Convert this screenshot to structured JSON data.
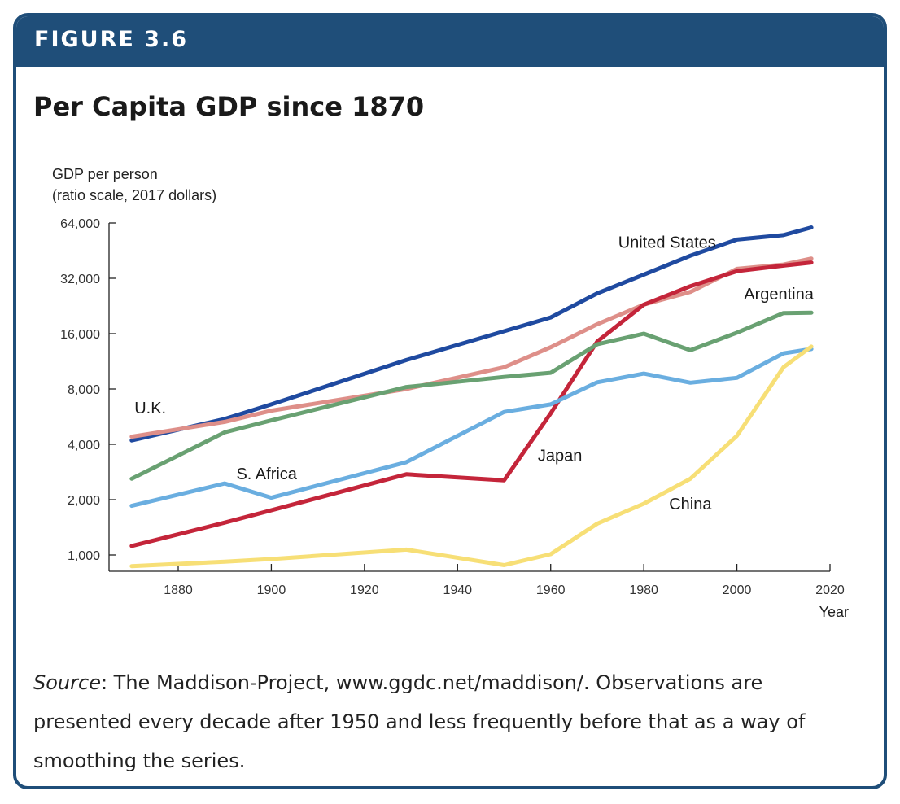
{
  "figure": {
    "label": "FIGURE 3.6",
    "title": "Per Capita GDP since 1870",
    "source_label": "Source",
    "source_text": ": The Maddison-Project, www.ggdc.net/maddison/. Observations are presented every decade after 1950 and less frequently before that as a way of smoothing the series."
  },
  "colors": {
    "banner": "#1f4e79",
    "axis": "#222222"
  },
  "chart_data": {
    "type": "line",
    "ylabel_line1": "GDP per person",
    "ylabel_line2": "(ratio scale, 2017 dollars)",
    "xlabel": "Year",
    "y_scale": "log2",
    "ylim": [
      850,
      64000
    ],
    "xlim": [
      1865,
      2020
    ],
    "yticks": [
      1000,
      2000,
      4000,
      8000,
      16000,
      32000,
      64000
    ],
    "ytick_labels": [
      "1,000",
      "2,000",
      "4,000",
      "8,000",
      "16,000",
      "32,000",
      "64,000"
    ],
    "xticks": [
      1880,
      1900,
      1920,
      1940,
      1960,
      1980,
      2000,
      2020
    ],
    "xtick_labels": [
      "1880",
      "1900",
      "1920",
      "1940",
      "1960",
      "1980",
      "2000",
      "2020"
    ],
    "series": [
      {
        "name": "United States",
        "color": "#1f4aa0",
        "label": {
          "text": "United States",
          "x": 1985,
          "y": 47000
        },
        "points": [
          [
            1870,
            4200
          ],
          [
            1890,
            5500
          ],
          [
            1900,
            6600
          ],
          [
            1929,
            11500
          ],
          [
            1950,
            16500
          ],
          [
            1960,
            19600
          ],
          [
            1970,
            26500
          ],
          [
            1980,
            33500
          ],
          [
            1990,
            42500
          ],
          [
            2000,
            52000
          ],
          [
            2010,
            55000
          ],
          [
            2016,
            60500
          ]
        ]
      },
      {
        "name": "U.K.",
        "color": "#de8f89",
        "label": {
          "text": "U.K.",
          "x": 1874,
          "y": 5900
        },
        "points": [
          [
            1870,
            4400
          ],
          [
            1890,
            5300
          ],
          [
            1900,
            6100
          ],
          [
            1929,
            8000
          ],
          [
            1950,
            10500
          ],
          [
            1960,
            13500
          ],
          [
            1970,
            18000
          ],
          [
            1980,
            23000
          ],
          [
            1990,
            27000
          ],
          [
            2000,
            36000
          ],
          [
            2010,
            38000
          ],
          [
            2016,
            41000
          ]
        ]
      },
      {
        "name": "Japan",
        "color": "#c4253a",
        "label": {
          "text": "Japan",
          "x": 1962,
          "y": 3250
        },
        "points": [
          [
            1870,
            1120
          ],
          [
            1890,
            1500
          ],
          [
            1900,
            1750
          ],
          [
            1929,
            2750
          ],
          [
            1950,
            2550
          ],
          [
            1960,
            5900
          ],
          [
            1970,
            14500
          ],
          [
            1980,
            23000
          ],
          [
            1990,
            29000
          ],
          [
            2000,
            35000
          ],
          [
            2010,
            37500
          ],
          [
            2016,
            39000
          ]
        ]
      },
      {
        "name": "Argentina",
        "color": "#69a172",
        "label": {
          "text": "Argentina",
          "x": 2009,
          "y": 24500
        },
        "points": [
          [
            1870,
            2600
          ],
          [
            1890,
            4650
          ],
          [
            1900,
            5400
          ],
          [
            1929,
            8200
          ],
          [
            1950,
            9300
          ],
          [
            1960,
            9800
          ],
          [
            1970,
            14000
          ],
          [
            1980,
            16000
          ],
          [
            1990,
            13000
          ],
          [
            2000,
            16200
          ],
          [
            2010,
            20700
          ],
          [
            2016,
            20800
          ]
        ]
      },
      {
        "name": "S. Africa",
        "color": "#6aaee0",
        "label": {
          "text": "S. Africa",
          "x": 1899,
          "y": 2580
        },
        "points": [
          [
            1870,
            1850
          ],
          [
            1890,
            2450
          ],
          [
            1900,
            2050
          ],
          [
            1929,
            3200
          ],
          [
            1950,
            6000
          ],
          [
            1960,
            6600
          ],
          [
            1970,
            8700
          ],
          [
            1980,
            9700
          ],
          [
            1990,
            8650
          ],
          [
            2000,
            9200
          ],
          [
            2010,
            12500
          ],
          [
            2016,
            13200
          ]
        ]
      },
      {
        "name": "China",
        "color": "#f7df76",
        "label": {
          "text": "China",
          "x": 1990,
          "y": 1770
        },
        "points": [
          [
            1870,
            870
          ],
          [
            1890,
            920
          ],
          [
            1900,
            950
          ],
          [
            1929,
            1070
          ],
          [
            1950,
            880
          ],
          [
            1960,
            1010
          ],
          [
            1970,
            1480
          ],
          [
            1980,
            1900
          ],
          [
            1990,
            2600
          ],
          [
            2000,
            4450
          ],
          [
            2010,
            10500
          ],
          [
            2016,
            13600
          ]
        ]
      }
    ]
  }
}
